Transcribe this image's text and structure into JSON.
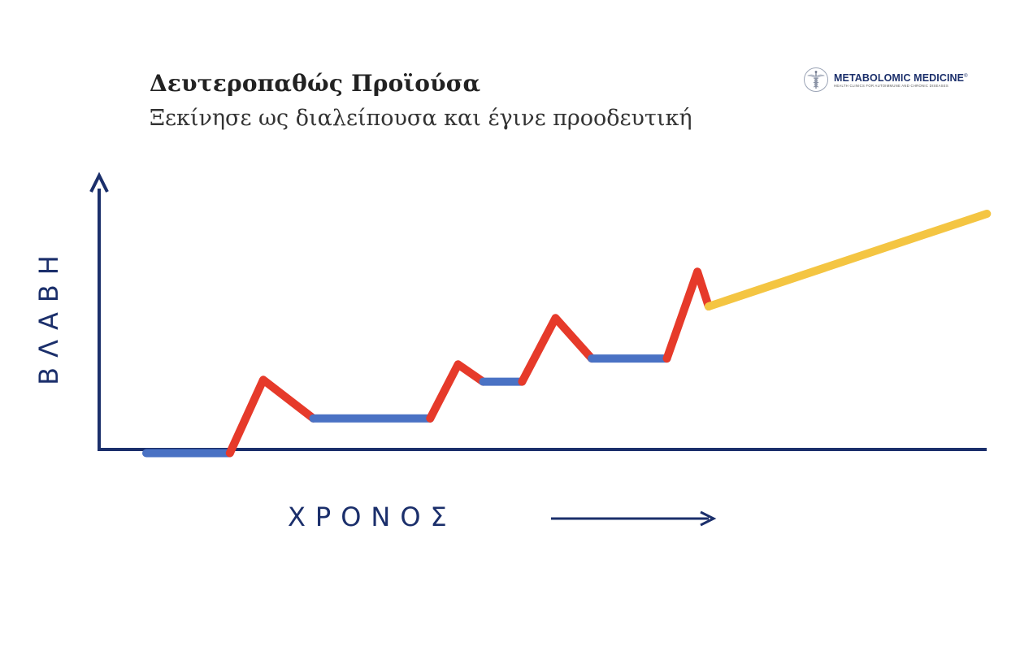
{
  "header": {
    "title": "Δευτεροπαθώς Προϊούσα",
    "subtitle": "Ξεκίνησε ως διαλείπουσα και έγινε προοδευτική"
  },
  "logo": {
    "name": "METABOLOMIC MEDICINE",
    "trademark": "®",
    "tagline": "HEALTH CLINICS FOR AUTOIMMUNE AND CHRONIC DISEASES",
    "icon": "caduceus-icon"
  },
  "axes": {
    "ylabel": "ΒΛΑΒΗ",
    "xlabel": "ΧΡΟΝΟΣ",
    "color": "#1b2f6b"
  },
  "colors": {
    "stable": "#4a72c4",
    "relapse": "#e63a2a",
    "progression": "#f4c542"
  },
  "segments": [
    {
      "phase": "stable",
      "points": [
        [
          0,
          1.0
        ],
        [
          1.5,
          1.0
        ]
      ]
    },
    {
      "phase": "relapse",
      "points": [
        [
          1.5,
          1.0
        ],
        [
          2.1,
          2.9
        ],
        [
          3.0,
          1.9
        ]
      ]
    },
    {
      "phase": "stable",
      "points": [
        [
          3.0,
          1.9
        ],
        [
          5.1,
          1.9
        ]
      ]
    },
    {
      "phase": "relapse",
      "points": [
        [
          5.1,
          1.9
        ],
        [
          5.6,
          3.3
        ],
        [
          6.05,
          2.85
        ]
      ]
    },
    {
      "phase": "stable",
      "points": [
        [
          6.05,
          2.85
        ],
        [
          6.75,
          2.85
        ]
      ]
    },
    {
      "phase": "relapse",
      "points": [
        [
          6.75,
          2.85
        ],
        [
          7.35,
          4.5
        ],
        [
          8.0,
          3.45
        ]
      ]
    },
    {
      "phase": "stable",
      "points": [
        [
          8.0,
          3.45
        ],
        [
          9.35,
          3.45
        ]
      ]
    },
    {
      "phase": "relapse",
      "points": [
        [
          9.35,
          3.45
        ],
        [
          9.9,
          5.7
        ],
        [
          10.1,
          4.8
        ]
      ]
    },
    {
      "phase": "progression",
      "points": [
        [
          10.1,
          4.8
        ],
        [
          15.1,
          7.2
        ]
      ]
    }
  ]
}
